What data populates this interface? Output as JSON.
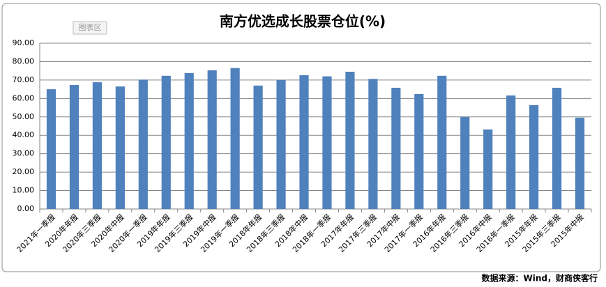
{
  "chart_data": {
    "type": "bar",
    "title": "南方优选成长股票仓位(%)",
    "categories": [
      "2021年一季报",
      "2020年年报",
      "2020年三季报",
      "2020年中报",
      "2020年一季报",
      "2019年年报",
      "2019年三季报",
      "2019年中报",
      "2019年一季报",
      "2018年年报",
      "2018年三季报",
      "2018年中报",
      "2018年一季报",
      "2017年年报",
      "2017年三季报",
      "2017年中报",
      "2017年一季报",
      "2016年年报",
      "2016年三季报",
      "2016年中报",
      "2016年一季报",
      "2015年年报",
      "2015年三季报",
      "2015年中报"
    ],
    "values": [
      65,
      67.3,
      68.8,
      66.5,
      70.2,
      72.3,
      73.8,
      75.3,
      76.5,
      67,
      70,
      72.6,
      72,
      74.5,
      70.6,
      65.8,
      62.4,
      72.3,
      50,
      43.2,
      61.6,
      56.4,
      65.8,
      49.6
    ],
    "color": "#4f81bd",
    "ylim": [
      0,
      90
    ],
    "yticks": [
      {
        "value": 0,
        "label": "0.00"
      },
      {
        "value": 10,
        "label": "10.00"
      },
      {
        "value": 20,
        "label": "20.00"
      },
      {
        "value": 30,
        "label": "30.00"
      },
      {
        "value": 40,
        "label": "40.00"
      },
      {
        "value": 50,
        "label": "50.00"
      },
      {
        "value": 60,
        "label": "60.00"
      },
      {
        "value": 70,
        "label": "70.00"
      },
      {
        "value": 80,
        "label": "80.00"
      },
      {
        "value": 90,
        "label": "90.00"
      }
    ],
    "grid": true,
    "tooltip": "图表区",
    "source": "数据来源：Wind，财商侠客行"
  }
}
